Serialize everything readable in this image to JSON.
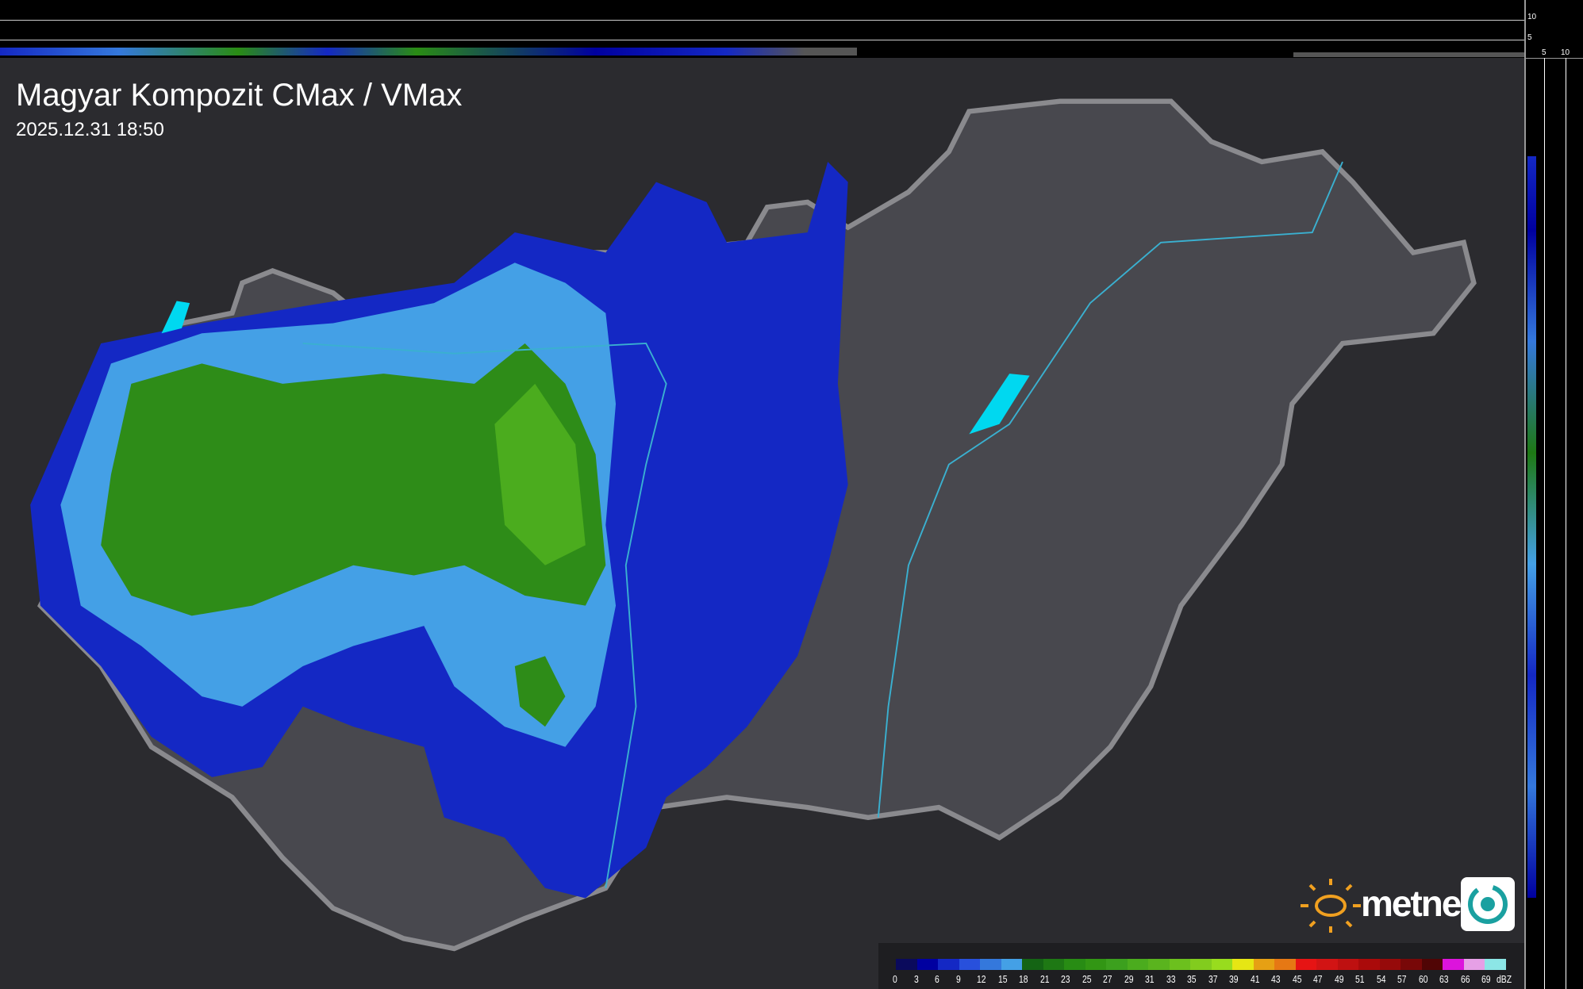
{
  "title": "Magyar Kompozit CMax / VMax",
  "timestamp": "2025.12.31 18:50",
  "top_axis_ticks": [
    "10",
    "5"
  ],
  "right_axis_ticks": [
    "5",
    "10"
  ],
  "legend": {
    "unit": "dBZ",
    "labels": [
      "0",
      "3",
      "6",
      "9",
      "12",
      "15",
      "18",
      "21",
      "23",
      "25",
      "27",
      "29",
      "31",
      "33",
      "35",
      "37",
      "39",
      "41",
      "43",
      "45",
      "47",
      "49",
      "51",
      "54",
      "57",
      "60",
      "63",
      "66",
      "69"
    ],
    "colors": [
      "#0a0a5c",
      "#0000a0",
      "#1428c4",
      "#2850dc",
      "#3478dc",
      "#44a0e6",
      "#146414",
      "#1e7814",
      "#288c14",
      "#329614",
      "#3ca01e",
      "#4bac1e",
      "#5ab41e",
      "#6cc01e",
      "#82cc1e",
      "#98dc1e",
      "#e6e614",
      "#e6a014",
      "#e67814",
      "#e61414",
      "#d21414",
      "#be1010",
      "#aa0a0a",
      "#960a0a",
      "#780808",
      "#500505",
      "#dc14dc",
      "#e6a0e6",
      "#8ce6e6"
    ]
  },
  "logo": {
    "text": "metnet",
    "colors": {
      "sun": "#f0a020",
      "swirl": "#1aa0a0"
    }
  }
}
